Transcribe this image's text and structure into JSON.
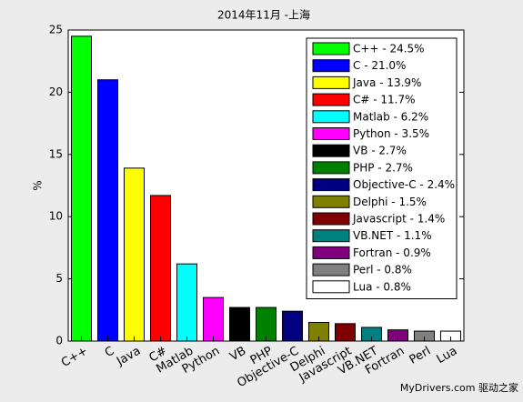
{
  "chart_data": {
    "type": "bar",
    "title": "2014年11月 -上海",
    "y_label": "%",
    "categories": [
      "C++",
      "C",
      "Java",
      "C#",
      "Matlab",
      "Python",
      "VB",
      "PHP",
      "Objective-C",
      "Delphi",
      "Javascript",
      "VB.NET",
      "Fortran",
      "Perl",
      "Lua"
    ],
    "values": [
      24.5,
      21.0,
      13.9,
      11.7,
      6.2,
      3.5,
      2.7,
      2.7,
      2.4,
      1.5,
      1.4,
      1.1,
      0.9,
      0.8,
      0.8
    ],
    "colors": [
      "#00ff00",
      "#0000ff",
      "#ffff00",
      "#ff0000",
      "#00ffff",
      "#ff00ff",
      "#000000",
      "#008000",
      "#000080",
      "#808000",
      "#800000",
      "#008080",
      "#800080",
      "#808080",
      "#ffffff"
    ],
    "legend": [
      "C++ - 24.5%",
      "C - 21.0%",
      "Java - 13.9%",
      "C# - 11.7%",
      "Matlab - 6.2%",
      "Python - 3.5%",
      "VB - 2.7%",
      "PHP - 2.7%",
      "Objective-C - 2.4%",
      "Delphi - 1.5%",
      "Javascript - 1.4%",
      "VB.NET - 1.1%",
      "Fortran - 0.9%",
      "Perl - 0.8%",
      "Lua - 0.8%"
    ],
    "legend_position": "upper right",
    "ylim": [
      0,
      25
    ],
    "yticks": [
      0,
      5,
      10,
      15,
      20,
      25
    ],
    "grid": false,
    "watermark": "MyDrivers.com 驱动之家"
  }
}
